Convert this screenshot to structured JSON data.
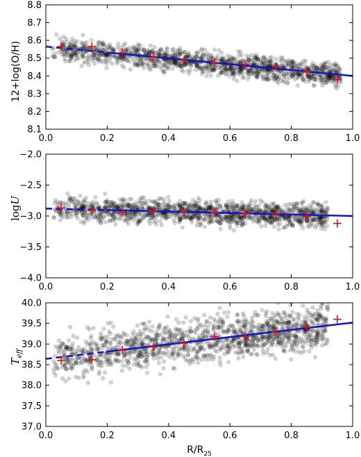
{
  "chart_data": [
    {
      "type": "scatter",
      "ylabel": "12+log(O/H)",
      "xlabel": "",
      "xlim": [
        0.0,
        1.0
      ],
      "ylim": [
        8.1,
        8.8
      ],
      "xticks": [
        "0.0",
        "0.2",
        "0.4",
        "0.6",
        "0.8",
        "1.0"
      ],
      "yticks": [
        "8.1",
        "8.2",
        "8.3",
        "8.4",
        "8.5",
        "8.6",
        "8.7",
        "8.8"
      ],
      "scatter_cloud": {
        "xmin": 0.02,
        "xmax": 0.96,
        "intercept": 8.56,
        "slope": -0.165,
        "spread": 0.045,
        "count": 1300,
        "seed": 11
      },
      "binned_points": {
        "x": [
          0.05,
          0.15,
          0.25,
          0.35,
          0.45,
          0.55,
          0.65,
          0.75,
          0.85,
          0.95
        ],
        "y": [
          8.565,
          8.565,
          8.53,
          8.505,
          8.49,
          8.475,
          8.465,
          8.45,
          8.425,
          8.38
        ]
      },
      "fit": {
        "intercept": 8.565,
        "slope": -0.165,
        "dash_until": 0.2
      },
      "colors": {
        "scatter": "#000000",
        "fit": "#1515c8",
        "binned": "#e81010"
      }
    },
    {
      "type": "scatter",
      "ylabel": "logU",
      "xlabel": "",
      "xlim": [
        0.0,
        1.0
      ],
      "ylim": [
        -4.0,
        -2.0
      ],
      "xticks": [
        "0.0",
        "0.2",
        "0.4",
        "0.6",
        "0.8",
        "1.0"
      ],
      "yticks": [
        "−4.0",
        "−3.5",
        "−3.0",
        "−2.5",
        "−2.0"
      ],
      "scatter_cloud": {
        "xmin": 0.02,
        "xmax": 0.92,
        "intercept": -2.88,
        "slope": -0.12,
        "spread": 0.14,
        "count": 1300,
        "seed": 23
      },
      "binned_points": {
        "x": [
          0.05,
          0.15,
          0.25,
          0.35,
          0.45,
          0.55,
          0.65,
          0.75,
          0.85,
          0.95
        ],
        "y": [
          -2.87,
          -2.91,
          -2.94,
          -2.92,
          -2.93,
          -2.94,
          -2.96,
          -2.96,
          -3.01,
          -3.12
        ]
      },
      "fit": {
        "intercept": -2.88,
        "slope": -0.12,
        "dash_until": 0.2
      },
      "colors": {
        "scatter": "#000000",
        "fit": "#1515c8",
        "binned": "#e81010"
      }
    },
    {
      "type": "scatter",
      "ylabel": "T_eff",
      "xlabel": "R/R25",
      "xlim": [
        0.0,
        1.0
      ],
      "ylim": [
        37.0,
        40.0
      ],
      "xticks": [
        "0.0",
        "0.2",
        "0.4",
        "0.6",
        "0.8",
        "1.0"
      ],
      "yticks": [
        "37.0",
        "37.5",
        "38.0",
        "38.5",
        "39.0",
        "39.5",
        "40.0"
      ],
      "scatter_cloud": {
        "xmin": 0.02,
        "xmax": 0.92,
        "intercept": 38.63,
        "slope": 0.9,
        "spread": 0.38,
        "count": 1300,
        "seed": 37
      },
      "binned_points": {
        "x": [
          0.05,
          0.15,
          0.25,
          0.35,
          0.45,
          0.55,
          0.65,
          0.75,
          0.85,
          0.95
        ],
        "y": [
          38.6,
          38.62,
          38.85,
          38.93,
          39.02,
          39.18,
          39.18,
          39.28,
          39.41,
          39.6
        ]
      },
      "fit": {
        "intercept": 38.64,
        "slope": 0.88,
        "dash_until": 0.2
      },
      "colors": {
        "scatter": "#000000",
        "fit": "#1515c8",
        "binned": "#e81010"
      }
    }
  ],
  "axis_text": {
    "xlabel_main": "R/R",
    "xlabel_sub": "25",
    "ylabel_top": "12+log(O/H)",
    "ylabel_mid_main": "log",
    "ylabel_mid_var": "U",
    "ylabel_bot_main": "T",
    "ylabel_bot_sub": "eff"
  }
}
